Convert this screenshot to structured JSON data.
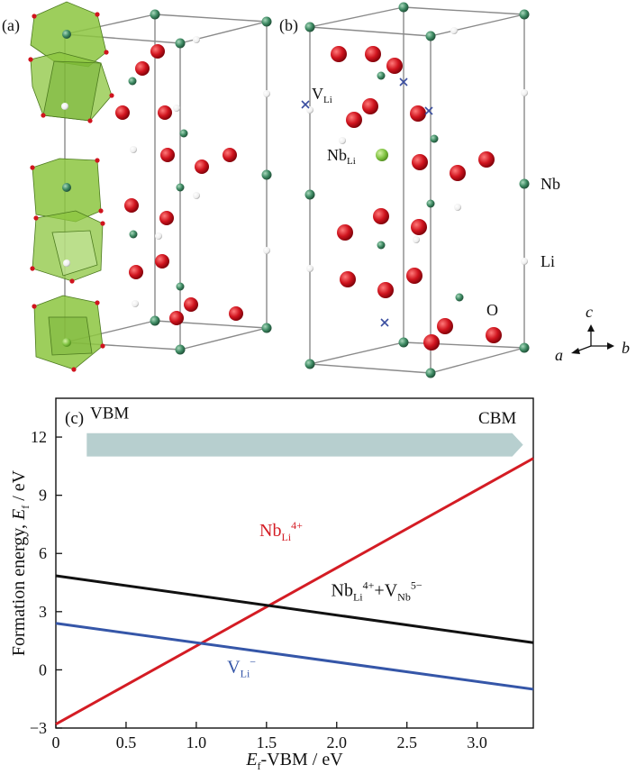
{
  "panels": {
    "a": {
      "label": "(a)"
    },
    "b": {
      "label": "(b)",
      "defects": {
        "v_li": {
          "base": "V",
          "sub": "Li"
        },
        "nb_li": {
          "base": "Nb",
          "sub": "Li"
        }
      },
      "atom_legend": {
        "nb": "Nb",
        "li": "Li",
        "o": "O"
      },
      "axes": {
        "a": "a",
        "b": "b",
        "c": "c"
      }
    },
    "c": {
      "label": "(c)"
    }
  },
  "colors": {
    "nb_atom": "#3e8a63",
    "li_atom": "#f2f2f2",
    "o_atom": "#d0141e",
    "dopant": "#7fc241",
    "octahedron": "#8cc63f",
    "vacancy": "#3a4ea0",
    "arrow_band": "#b7cfcf",
    "cell_line": "#8a8a8a"
  },
  "chart_data": {
    "type": "line",
    "band_labels": {
      "left": "VBM",
      "right": "CBM"
    },
    "xlabel": {
      "base": "E",
      "sub": "f",
      "rest": "-VBM / eV"
    },
    "ylabel": {
      "pre": "Formation energy, ",
      "base": "E",
      "sub": "f",
      "rest": " / eV"
    },
    "xlim": [
      0,
      3.4
    ],
    "ylim": [
      -3,
      14
    ],
    "xticks": [
      "0",
      "0.5",
      "1.0",
      "1.5",
      "2.0",
      "2.5",
      "3.0"
    ],
    "xtick_values": [
      0,
      0.5,
      1.0,
      1.5,
      2.0,
      2.5,
      3.0
    ],
    "yticks": [
      "−3",
      "0",
      "3",
      "6",
      "9",
      "12"
    ],
    "ytick_values": [
      -3,
      0,
      3,
      6,
      9,
      12
    ],
    "arrow_band_x": [
      0.22,
      3.25
    ],
    "series": [
      {
        "key": "nb",
        "color": "#d41c24",
        "x": [
          0,
          3.4
        ],
        "y": [
          -2.8,
          10.9
        ],
        "label": {
          "base": "Nb",
          "sub": "Li",
          "sup": "4+"
        }
      },
      {
        "key": "complex",
        "color": "#111111",
        "x": [
          0,
          3.4
        ],
        "y": [
          4.85,
          1.4
        ],
        "label": {
          "base": "Nb",
          "sub": "Li",
          "sup": "4+",
          "plus": "+V",
          "sub2": "Nb",
          "sup2": "5−"
        }
      },
      {
        "key": "vli",
        "color": "#3556a8",
        "x": [
          0,
          3.4
        ],
        "y": [
          2.4,
          -1.0
        ],
        "label": {
          "base": "V",
          "sub": "Li",
          "sup": "−"
        }
      }
    ]
  }
}
